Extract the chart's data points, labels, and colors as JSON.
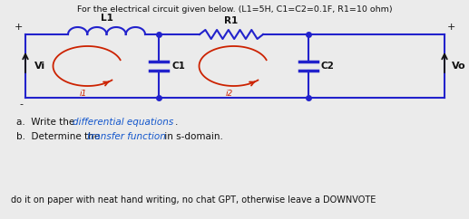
{
  "title": "For the electrical circuit given below. (L1=5H, C1=C2=0.1F, R1=10 ohm)",
  "bg_color": "#ebebeb",
  "circuit_color": "#2222cc",
  "arrow_color": "#cc2200",
  "text_color": "#111111",
  "blue_text_color": "#1155cc",
  "q_a_prefix": "a.  Write the ",
  "q_a_blue": "differential equations",
  "q_a_suffix": ".",
  "q_b_prefix": "b.  Determine the ",
  "q_b_blue": "transfer function",
  "q_b_suffix": " in s-domain.",
  "bottom_text": "do it on paper with neat hand writing, no chat GPT, otherwise leave a DOWNVOTE",
  "label_L1": "L1",
  "label_R1": "R1",
  "label_C1": "C1",
  "label_C2": "C2",
  "label_Vi": "Vi",
  "label_Vo": "Vo",
  "label_i1": "i1",
  "label_i2": "i2",
  "plus": "+",
  "minus": "-"
}
